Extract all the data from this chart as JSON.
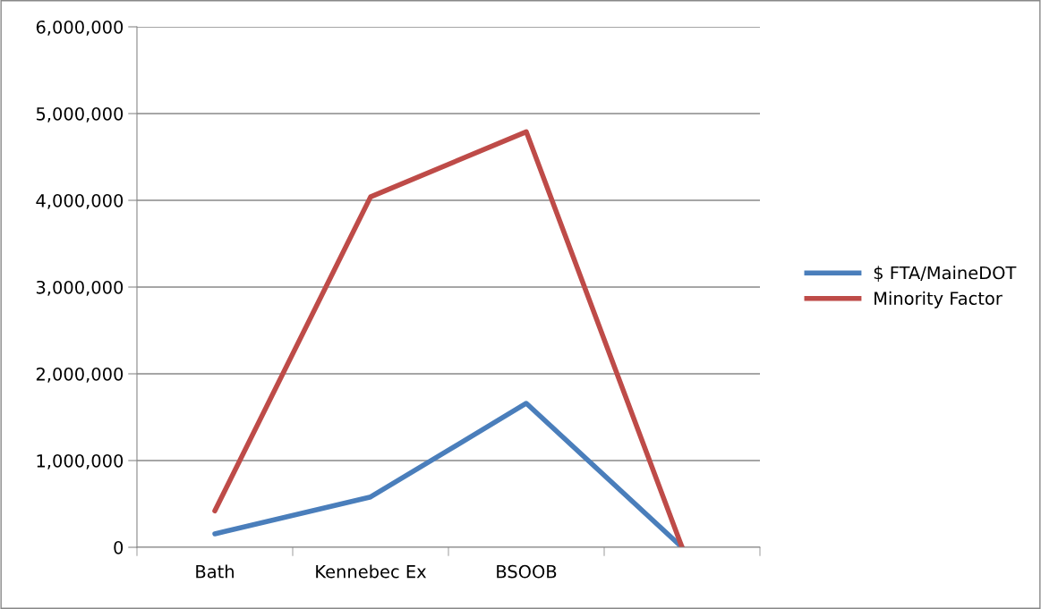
{
  "chart_data": {
    "type": "line",
    "categories": [
      "Bath",
      "Kennebec Ex",
      "BSOOB",
      null
    ],
    "series": [
      {
        "name": "$ FTA/MaineDOT",
        "color": "#4a7ebb",
        "values": [
          155000,
          580000,
          1660000,
          0
        ]
      },
      {
        "name": "Minority Factor",
        "color": "#be4b48",
        "values": [
          420000,
          4040000,
          4790000,
          0
        ]
      }
    ],
    "ylim": [
      0,
      6000000
    ],
    "yticks": [
      {
        "value": 0,
        "label": "0"
      },
      {
        "value": 1000000,
        "label": "1,000,000"
      },
      {
        "value": 2000000,
        "label": "2,000,000"
      },
      {
        "value": 3000000,
        "label": "3,000,000"
      },
      {
        "value": 4000000,
        "label": "4,000,000"
      },
      {
        "value": 5000000,
        "label": "5,000,000"
      },
      {
        "value": 6000000,
        "label": "6,000,000"
      }
    ],
    "grid": "y",
    "legend": "right",
    "marker": "none",
    "line_style": "solid"
  }
}
